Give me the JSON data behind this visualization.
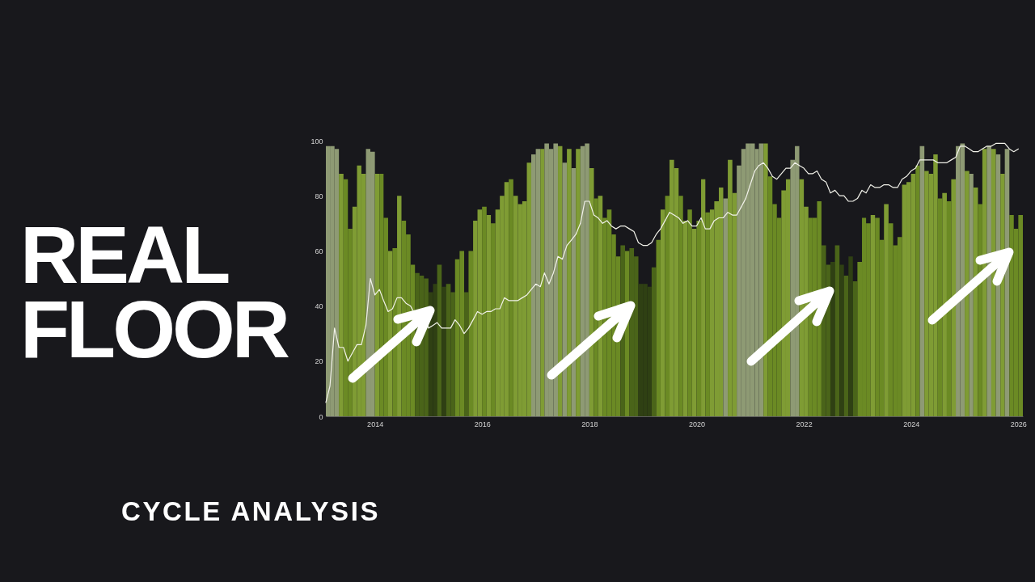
{
  "chart_data": {
    "type": "bar",
    "title": "REAL FLOOR",
    "subtitle": "CYCLE ANALYSIS",
    "x": [
      "2013-02",
      "2013-03",
      "2013-04",
      "2013-05",
      "2013-06",
      "2013-07",
      "2013-08",
      "2013-09",
      "2013-10",
      "2013-11",
      "2013-12",
      "2014-01",
      "2014-02",
      "2014-03",
      "2014-04",
      "2014-05",
      "2014-06",
      "2014-07",
      "2014-08",
      "2014-09",
      "2014-10",
      "2014-11",
      "2014-12",
      "2015-01",
      "2015-02",
      "2015-03",
      "2015-04",
      "2015-05",
      "2015-06",
      "2015-07",
      "2015-08",
      "2015-09",
      "2015-10",
      "2015-11",
      "2015-12",
      "2016-01",
      "2016-02",
      "2016-03",
      "2016-04",
      "2016-05",
      "2016-06",
      "2016-07",
      "2016-08",
      "2016-09",
      "2016-10",
      "2016-11",
      "2016-12",
      "2017-01",
      "2017-02",
      "2017-03",
      "2017-04",
      "2017-05",
      "2017-06",
      "2017-07",
      "2017-08",
      "2017-09",
      "2017-10",
      "2017-11",
      "2017-12",
      "2018-01",
      "2018-02",
      "2018-03",
      "2018-04",
      "2018-05",
      "2018-06",
      "2018-07",
      "2018-08",
      "2018-09",
      "2018-10",
      "2018-11",
      "2018-12",
      "2019-01",
      "2019-02",
      "2019-03",
      "2019-04",
      "2019-05",
      "2019-06",
      "2019-07",
      "2019-08",
      "2019-09",
      "2019-10",
      "2019-11",
      "2019-12",
      "2020-01",
      "2020-02",
      "2020-03",
      "2020-04",
      "2020-05",
      "2020-06",
      "2020-07",
      "2020-08",
      "2020-09",
      "2020-10",
      "2020-11",
      "2020-12",
      "2021-01",
      "2021-02",
      "2021-03",
      "2021-04",
      "2021-05",
      "2021-06",
      "2021-07",
      "2021-08",
      "2021-09",
      "2021-10",
      "2021-11",
      "2021-12",
      "2022-01",
      "2022-02",
      "2022-03",
      "2022-04",
      "2022-05",
      "2022-06",
      "2022-07",
      "2022-08",
      "2022-09",
      "2022-10",
      "2022-11",
      "2022-12",
      "2023-01",
      "2023-02",
      "2023-03",
      "2023-04",
      "2023-05",
      "2023-06",
      "2023-07",
      "2023-08",
      "2023-09",
      "2023-10",
      "2023-11",
      "2023-12",
      "2024-01",
      "2024-02",
      "2024-03",
      "2024-04",
      "2024-05",
      "2024-06",
      "2024-07",
      "2024-08",
      "2024-09",
      "2024-10",
      "2024-11",
      "2024-12",
      "2025-01",
      "2025-02",
      "2025-03",
      "2025-04",
      "2025-05",
      "2025-06",
      "2025-07",
      "2025-08",
      "2025-09",
      "2025-10",
      "2025-11",
      "2025-12",
      "2026-01"
    ],
    "series": [
      {
        "values": [
          98,
          98,
          97,
          88,
          86,
          68,
          76,
          91,
          88,
          97,
          96,
          88,
          88,
          72,
          60,
          61,
          80,
          71,
          66,
          55,
          52,
          51,
          50,
          45,
          48,
          55,
          47,
          48,
          45,
          57,
          60,
          45,
          60,
          71,
          75,
          76,
          73,
          70,
          75,
          80,
          85,
          86,
          80,
          77,
          78,
          92,
          95,
          97,
          97,
          99,
          97,
          99,
          98,
          92,
          97,
          90,
          97,
          98,
          99,
          90,
          79,
          80,
          72,
          75,
          66,
          58,
          62,
          60,
          61,
          58,
          48,
          48,
          47,
          54,
          64,
          75,
          80,
          93,
          90,
          80,
          71,
          75,
          68,
          71,
          86,
          74,
          75,
          78,
          83,
          79,
          93,
          81,
          91,
          97,
          99,
          99,
          97,
          99,
          99,
          87,
          77,
          72,
          82,
          86,
          93,
          98,
          86,
          76,
          72,
          72,
          78,
          62,
          55,
          56,
          62,
          55,
          51,
          58,
          49,
          56,
          72,
          70,
          73,
          72,
          64,
          77,
          70,
          62,
          65,
          84,
          85,
          88,
          91,
          98,
          89,
          88,
          95,
          79,
          81,
          78,
          86,
          98,
          99,
          89,
          88,
          83,
          77,
          97,
          98,
          97,
          95,
          88,
          97,
          73,
          68,
          73
        ],
        "colors": [
          "#8e9a74",
          "#8e9a74",
          "#8e9a74",
          "#7f9c34",
          "#6b8a24",
          "#6b8a24",
          "#7f9c34",
          "#7f9c34",
          "#7f9c34",
          "#8e9a74",
          "#8e9a74",
          "#7f9c34",
          "#6b8a24",
          "#6b8a24",
          "#7f9c34",
          "#6b8a24",
          "#7f9c34",
          "#6b8a24",
          "#6b8a24",
          "#6b8a24",
          "#4a6419",
          "#4a6419",
          "#4a6419",
          "#2f4013",
          "#2f4013",
          "#4a6419",
          "#2f4013",
          "#4a6419",
          "#4a6419",
          "#6b8a24",
          "#6b8a24",
          "#4a6419",
          "#6b8a24",
          "#7f9c34",
          "#7f9c34",
          "#6b8a24",
          "#7f9c34",
          "#6b8a24",
          "#7f9c34",
          "#7f9c34",
          "#7f9c34",
          "#6b8a24",
          "#7f9c34",
          "#7f9c34",
          "#7f9c34",
          "#7f9c34",
          "#8e9a74",
          "#8e9a74",
          "#7f9c34",
          "#8e9a74",
          "#8e9a74",
          "#8e9a74",
          "#7f9c34",
          "#8e9a74",
          "#7f9c34",
          "#8e9a74",
          "#7f9c34",
          "#8e9a74",
          "#8e9a74",
          "#7f9c34",
          "#6b8a24",
          "#7f9c34",
          "#6b8a24",
          "#6b8a24",
          "#6b8a24",
          "#6b8a24",
          "#4a6419",
          "#6b8a24",
          "#4a6419",
          "#4a6419",
          "#2f4013",
          "#2f4013",
          "#2f4013",
          "#4a6419",
          "#6b8a24",
          "#7f9c34",
          "#6b8a24",
          "#7f9c34",
          "#7f9c34",
          "#6b8a24",
          "#7f9c34",
          "#6b8a24",
          "#7f9c34",
          "#6b8a24",
          "#7f9c34",
          "#6b8a24",
          "#7f9c34",
          "#7f9c34",
          "#7f9c34",
          "#8e9a74",
          "#7f9c34",
          "#7f9c34",
          "#8e9a74",
          "#8e9a74",
          "#8e9a74",
          "#8e9a74",
          "#8e9a74",
          "#8e9a74",
          "#7f9c34",
          "#6b8a24",
          "#6b8a24",
          "#6b8a24",
          "#7f9c34",
          "#7f9c34",
          "#8e9a74",
          "#8e9a74",
          "#7f9c34",
          "#7f9c34",
          "#6b8a24",
          "#6b8a24",
          "#6b8a24",
          "#4a6419",
          "#4a6419",
          "#2f4013",
          "#4a6419",
          "#2f4013",
          "#4a6419",
          "#2f4013",
          "#4a6419",
          "#6b8a24",
          "#6b8a24",
          "#6b8a24",
          "#7f9c34",
          "#6b8a24",
          "#6b8a24",
          "#7f9c34",
          "#6b8a24",
          "#6b8a24",
          "#6b8a24",
          "#7f9c34",
          "#7f9c34",
          "#7f9c34",
          "#6b8a24",
          "#8e9a74",
          "#7f9c34",
          "#7f9c34",
          "#7f9c34",
          "#6b8a24",
          "#7f9c34",
          "#6b8a24",
          "#7f9c34",
          "#8e9a74",
          "#8e9a74",
          "#7f9c34",
          "#8e9a74",
          "#7f9c34",
          "#6b8a24",
          "#7f9c34",
          "#8e9a74",
          "#7f9c34",
          "#8e9a74",
          "#7f9c34",
          "#8e9a74",
          "#6b8a24",
          "#6b8a24",
          "#6b8a24"
        ]
      },
      {
        "type": "line",
        "color": "#f2f2ea",
        "values": [
          5,
          11,
          32,
          25,
          25,
          20,
          23,
          26,
          26,
          33,
          50,
          44,
          46,
          42,
          38,
          39,
          43,
          43,
          41,
          40,
          37,
          38,
          38,
          32,
          33,
          34,
          32,
          32,
          32,
          35,
          33,
          30,
          32,
          35,
          38,
          37,
          38,
          38,
          39,
          39,
          43,
          42,
          42,
          42,
          43,
          44,
          46,
          48,
          47,
          52,
          48,
          52,
          58,
          57,
          62,
          64,
          66,
          70,
          78,
          78,
          73,
          72,
          70,
          71,
          69,
          68,
          69,
          69,
          68,
          67,
          63,
          62,
          62,
          63,
          66,
          68,
          71,
          74,
          73,
          72,
          70,
          71,
          69,
          69,
          72,
          68,
          68,
          71,
          72,
          72,
          74,
          73,
          73,
          76,
          79,
          84,
          89,
          91,
          92,
          90,
          87,
          86,
          88,
          90,
          90,
          92,
          91,
          90,
          88,
          88,
          89,
          86,
          85,
          81,
          82,
          80,
          80,
          78,
          78,
          79,
          82,
          81,
          84,
          83,
          83,
          84,
          84,
          83,
          83,
          86,
          87,
          89,
          90,
          93,
          93,
          93,
          93,
          92,
          92,
          92,
          93,
          94,
          98,
          98,
          97,
          96,
          96,
          97,
          98,
          98,
          99,
          99,
          99,
          97,
          96,
          97
        ]
      }
    ],
    "xlim": [
      "2013-02",
      "2026-02"
    ],
    "xticks": [
      "2014",
      "2016",
      "2018",
      "2020",
      "2022",
      "2024",
      "2026"
    ],
    "ylim": [
      0,
      100
    ],
    "yticks": [
      0,
      20,
      40,
      60,
      80,
      100
    ],
    "grid": false
  }
}
